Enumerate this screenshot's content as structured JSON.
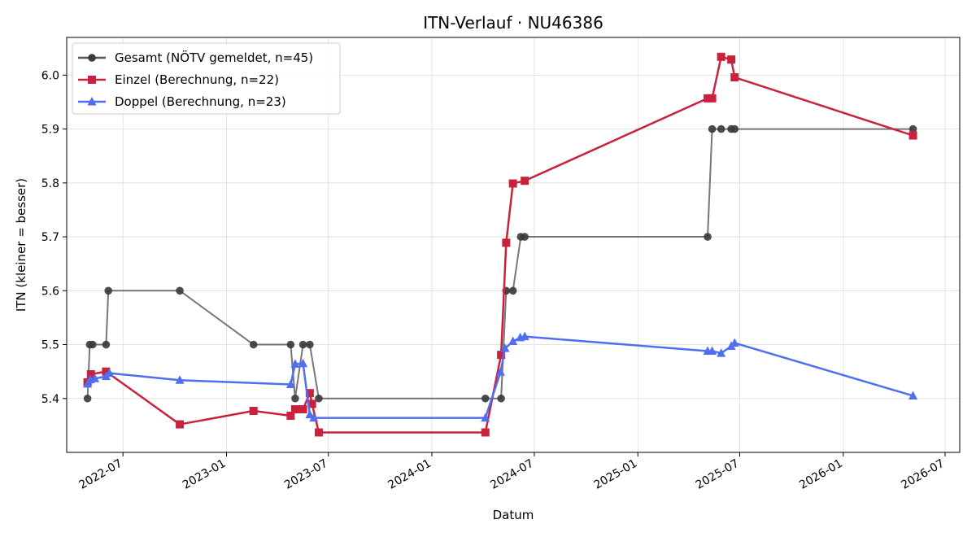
{
  "chart_data": {
    "type": "line",
    "title": "ITN-Verlauf · NU46386",
    "xlabel": "Datum",
    "ylabel": "ITN  (kleiner = besser)",
    "xlim": [
      "2022-03-23",
      "2026-07-27"
    ],
    "ylim": [
      5.3,
      6.07
    ],
    "x_ticks": [
      "2022-07",
      "2023-01",
      "2023-07",
      "2024-01",
      "2024-07",
      "2025-01",
      "2025-07",
      "2026-01",
      "2026-07"
    ],
    "y_ticks": [
      5.4,
      5.5,
      5.6,
      5.7,
      5.8,
      5.9,
      6.0
    ],
    "grid": true,
    "legend_position": "top-left",
    "series": [
      {
        "name": "Gesamt (NÖTV gemeldet, n=45)",
        "color": "#555555",
        "marker": "circle",
        "points": [
          {
            "x": "2022-04-29",
            "y": 5.4
          },
          {
            "x": "2022-05-03",
            "y": 5.5
          },
          {
            "x": "2022-05-08",
            "y": 5.5
          },
          {
            "x": "2022-06-01",
            "y": 5.5
          },
          {
            "x": "2022-06-05",
            "y": 5.6
          },
          {
            "x": "2022-10-10",
            "y": 5.6
          },
          {
            "x": "2023-02-18",
            "y": 5.5
          },
          {
            "x": "2023-04-25",
            "y": 5.5
          },
          {
            "x": "2023-05-03",
            "y": 5.4
          },
          {
            "x": "2023-05-17",
            "y": 5.5
          },
          {
            "x": "2023-05-29",
            "y": 5.5
          },
          {
            "x": "2023-06-14",
            "y": 5.4
          },
          {
            "x": "2024-04-05",
            "y": 5.4
          },
          {
            "x": "2024-05-03",
            "y": 5.4
          },
          {
            "x": "2024-05-12",
            "y": 5.6
          },
          {
            "x": "2024-05-24",
            "y": 5.6
          },
          {
            "x": "2024-06-07",
            "y": 5.7
          },
          {
            "x": "2024-06-14",
            "y": 5.7
          },
          {
            "x": "2025-05-05",
            "y": 5.7
          },
          {
            "x": "2025-05-13",
            "y": 5.9
          },
          {
            "x": "2025-05-29",
            "y": 5.9
          },
          {
            "x": "2025-06-16",
            "y": 5.9
          },
          {
            "x": "2025-06-22",
            "y": 5.9
          },
          {
            "x": "2026-05-05",
            "y": 5.9
          }
        ]
      },
      {
        "name": "Einzel (Berechnung, n=22)",
        "color": "#c8223f",
        "marker": "square",
        "points": [
          {
            "x": "2022-04-29",
            "y": 5.43
          },
          {
            "x": "2022-05-05",
            "y": 5.445
          },
          {
            "x": "2022-06-01",
            "y": 5.45
          },
          {
            "x": "2022-10-10",
            "y": 5.352
          },
          {
            "x": "2023-02-18",
            "y": 5.377
          },
          {
            "x": "2023-04-25",
            "y": 5.368
          },
          {
            "x": "2023-05-03",
            "y": 5.38
          },
          {
            "x": "2023-05-17",
            "y": 5.38
          },
          {
            "x": "2023-05-29",
            "y": 5.41
          },
          {
            "x": "2023-06-02",
            "y": 5.39
          },
          {
            "x": "2023-06-14",
            "y": 5.337
          },
          {
            "x": "2024-04-05",
            "y": 5.337
          },
          {
            "x": "2024-05-03",
            "y": 5.481
          },
          {
            "x": "2024-05-12",
            "y": 5.689
          },
          {
            "x": "2024-05-24",
            "y": 5.799
          },
          {
            "x": "2024-06-14",
            "y": 5.804
          },
          {
            "x": "2025-05-05",
            "y": 5.957
          },
          {
            "x": "2025-05-13",
            "y": 5.957
          },
          {
            "x": "2025-05-29",
            "y": 6.034
          },
          {
            "x": "2025-06-16",
            "y": 6.029
          },
          {
            "x": "2025-06-22",
            "y": 5.996
          },
          {
            "x": "2026-05-05",
            "y": 5.888
          }
        ]
      },
      {
        "name": "Doppel (Berechnung, n=23)",
        "color": "#4f6ff0",
        "marker": "triangle",
        "points": [
          {
            "x": "2022-04-29",
            "y": 5.427
          },
          {
            "x": "2022-05-04",
            "y": 5.435
          },
          {
            "x": "2022-05-12",
            "y": 5.437
          },
          {
            "x": "2022-06-01",
            "y": 5.441
          },
          {
            "x": "2022-06-07",
            "y": 5.447
          },
          {
            "x": "2022-10-10",
            "y": 5.434
          },
          {
            "x": "2023-04-25",
            "y": 5.426
          },
          {
            "x": "2023-05-03",
            "y": 5.464
          },
          {
            "x": "2023-05-17",
            "y": 5.465
          },
          {
            "x": "2023-05-29",
            "y": 5.37
          },
          {
            "x": "2023-06-05",
            "y": 5.364
          },
          {
            "x": "2024-04-05",
            "y": 5.364
          },
          {
            "x": "2024-05-02",
            "y": 5.449
          },
          {
            "x": "2024-05-10",
            "y": 5.493
          },
          {
            "x": "2024-05-24",
            "y": 5.506
          },
          {
            "x": "2024-06-06",
            "y": 5.513
          },
          {
            "x": "2024-06-14",
            "y": 5.515
          },
          {
            "x": "2025-05-05",
            "y": 5.488
          },
          {
            "x": "2025-05-13",
            "y": 5.488
          },
          {
            "x": "2025-05-29",
            "y": 5.484
          },
          {
            "x": "2025-06-16",
            "y": 5.497
          },
          {
            "x": "2025-06-22",
            "y": 5.503
          },
          {
            "x": "2026-05-05",
            "y": 5.405
          }
        ]
      }
    ]
  }
}
